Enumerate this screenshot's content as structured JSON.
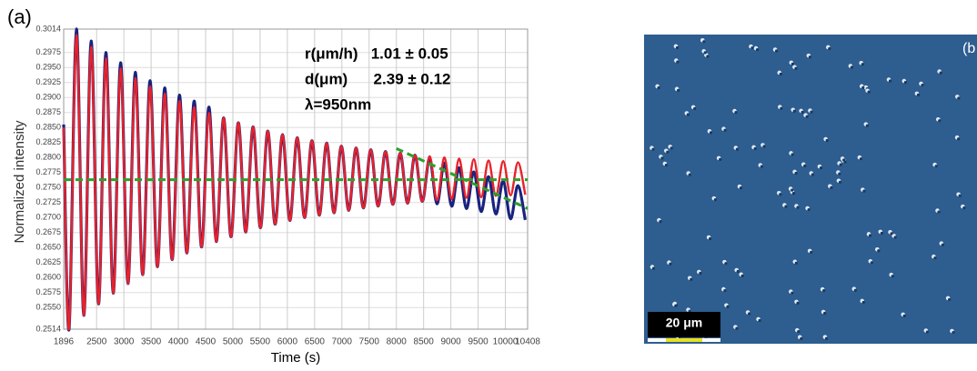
{
  "chart_data": {
    "type": "line",
    "panel_label": "(a)",
    "xlabel": "Time (s)",
    "ylabel": "Normalized intensity",
    "x": [
      1896,
      1995,
      2130,
      2265,
      2400,
      2535,
      2670,
      2805,
      2940,
      3075,
      3210,
      3345,
      3480,
      3615,
      3750,
      3885,
      4020,
      4155,
      4290,
      4425,
      4560,
      4695,
      4830,
      4965,
      5100,
      5235,
      5370,
      5505,
      5640,
      5775,
      5910,
      6045,
      6180,
      6315,
      6450,
      6585,
      6720,
      6855,
      6990,
      7125,
      7260,
      7395,
      7530,
      7665,
      7800,
      7935,
      8070,
      8205,
      8340,
      8475,
      8610,
      8745,
      8880,
      9015,
      9150,
      9285,
      9420,
      9555,
      9690,
      9825,
      9960,
      10095,
      10230,
      10365
    ],
    "series": [
      {
        "color": "#1a237e",
        "values": [
          0.2855,
          0.2514,
          0.3014,
          0.2537,
          0.2994,
          0.2556,
          0.2975,
          0.2574,
          0.2958,
          0.259,
          0.2942,
          0.2605,
          0.2928,
          0.2618,
          0.2916,
          0.263,
          0.2904,
          0.2641,
          0.2894,
          0.2651,
          0.2884,
          0.266,
          0.2866,
          0.2668,
          0.2858,
          0.2676,
          0.2851,
          0.2683,
          0.2844,
          0.2689,
          0.2838,
          0.2695,
          0.2833,
          0.27,
          0.2828,
          0.2704,
          0.2824,
          0.2708,
          0.2819,
          0.2712,
          0.2816,
          0.2716,
          0.2813,
          0.2719,
          0.281,
          0.2722,
          0.2807,
          0.2724,
          0.2804,
          0.2727,
          0.2799,
          0.2723,
          0.2791,
          0.2719,
          0.2783,
          0.2715,
          0.2776,
          0.271,
          0.2768,
          0.2706,
          0.2761,
          0.2698,
          0.2753,
          0.2696
        ]
      },
      {
        "color": "#e8222a",
        "values": [
          0.285,
          0.2515,
          0.3004,
          0.2537,
          0.2984,
          0.2556,
          0.2965,
          0.2574,
          0.2948,
          0.259,
          0.2932,
          0.2605,
          0.2918,
          0.2618,
          0.2906,
          0.263,
          0.2894,
          0.2641,
          0.2884,
          0.2651,
          0.2874,
          0.266,
          0.2866,
          0.2668,
          0.2858,
          0.2676,
          0.2851,
          0.2683,
          0.2844,
          0.2689,
          0.2838,
          0.2695,
          0.2833,
          0.27,
          0.2828,
          0.2704,
          0.2824,
          0.2708,
          0.2819,
          0.2712,
          0.2816,
          0.2716,
          0.2813,
          0.2719,
          0.281,
          0.2722,
          0.2807,
          0.2724,
          0.2804,
          0.2727,
          0.2802,
          0.2729,
          0.28,
          0.2731,
          0.2798,
          0.2733,
          0.2797,
          0.2734,
          0.2795,
          0.2736,
          0.2794,
          0.2737,
          0.2792,
          0.2738
        ]
      }
    ],
    "reference_lines": [
      {
        "color": "#2ca02c",
        "x": [
          1896,
          10408
        ],
        "values": [
          0.2763,
          0.2763
        ]
      },
      {
        "color": "#2ca02c",
        "x": [
          8000,
          10408
        ],
        "values": [
          0.2815,
          0.2715
        ]
      }
    ],
    "annotations": [
      "r(μm/h)   1.01 ± 0.05",
      "d(μm)      2.39 ± 0.12",
      "λ=950nm"
    ],
    "xlim": [
      1896,
      10408
    ],
    "xticks": [
      1896,
      2500,
      3000,
      3500,
      4000,
      4500,
      5000,
      5500,
      6000,
      6500,
      7000,
      7500,
      8000,
      8500,
      9000,
      9500,
      10000,
      10408
    ],
    "ylim": [
      0.2514,
      0.3014
    ],
    "yticks": [
      0.2514,
      {
        "value": 0.255,
        "label": "0.2550"
      },
      0.2575,
      {
        "value": 0.26,
        "label": "0.2600"
      },
      0.2625,
      {
        "value": 0.265,
        "label": "0.2650"
      },
      0.2675,
      {
        "value": 0.27,
        "label": "0.2700"
      },
      0.2725,
      {
        "value": 0.275,
        "label": "0.2750"
      },
      0.2775,
      {
        "value": 0.28,
        "label": "0.2800"
      },
      0.2825,
      {
        "value": 0.285,
        "label": "0.2850"
      },
      0.2875,
      {
        "value": 0.29,
        "label": "0.2900"
      },
      0.2925,
      {
        "value": 0.295,
        "label": "0.2950"
      },
      0.2975,
      0.3014
    ],
    "grid": true
  },
  "image_panel": {
    "label": "(b",
    "scale_bar": "20 μm"
  }
}
